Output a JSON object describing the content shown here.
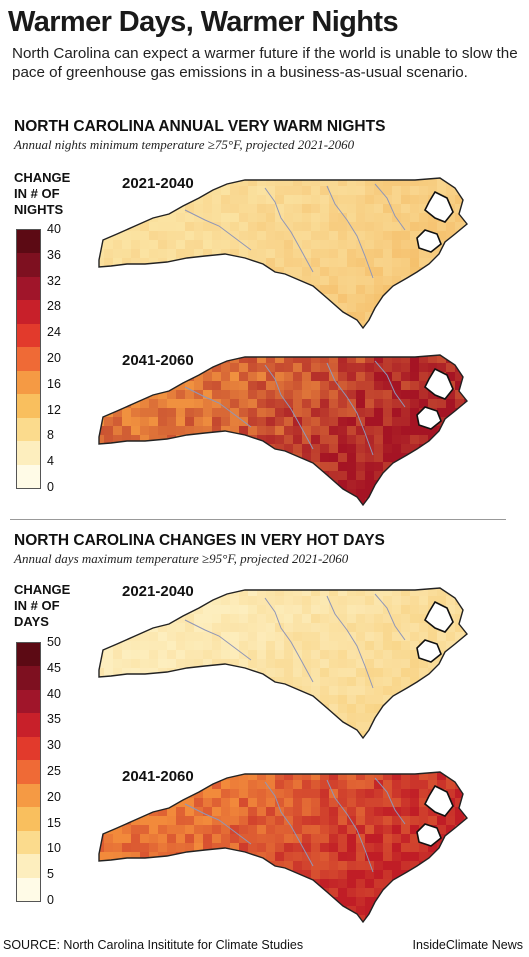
{
  "header": {
    "title": "Warmer Days, Warmer Nights",
    "subtitle": "North Carolina can expect a warmer future if the world is unable to slow the pace of greenhouse gas emissions in a business-as-usual scenario."
  },
  "sections": [
    {
      "title": "NORTH CAROLINA ANNUAL VERY WARM NIGHTS",
      "subtitle": "Annual nights minimum temperature ≥75°F, projected 2021-2060",
      "legend": {
        "title": "CHANGE IN # OF NIGHTS",
        "ticks": [
          "40",
          "36",
          "32",
          "28",
          "24",
          "20",
          "16",
          "12",
          "8",
          "4",
          "0"
        ],
        "colors": [
          "#5c0a14",
          "#7e1020",
          "#a0152a",
          "#c8202a",
          "#e23a2c",
          "#ef6a36",
          "#f59a44",
          "#f9bf5e",
          "#fbdb8d",
          "#fdeebe",
          "#fffbe7"
        ]
      },
      "maps": [
        {
          "label": "2021-2040",
          "low_color": "#fbe3a2",
          "high_color": "#f3b45a",
          "intensity": 0.25
        },
        {
          "label": "2041-2060",
          "low_color": "#f0913f",
          "high_color": "#a51424",
          "intensity": 0.85
        }
      ]
    },
    {
      "title": "NORTH CAROLINA CHANGES IN VERY HOT DAYS",
      "subtitle": "Annual days maximum temperature ≥95°F, projected 2021-2060",
      "legend": {
        "title": "CHANGE IN # OF DAYS",
        "ticks": [
          "50",
          "45",
          "40",
          "35",
          "30",
          "25",
          "20",
          "15",
          "10",
          "5",
          "0"
        ],
        "colors": [
          "#5c0a14",
          "#7e1020",
          "#a0152a",
          "#c8202a",
          "#e23a2c",
          "#ef6a36",
          "#f59a44",
          "#f9bf5e",
          "#fbdb8d",
          "#fdeebe",
          "#fffbe7"
        ]
      },
      "maps": [
        {
          "label": "2021-2040",
          "low_color": "#fdeebe",
          "high_color": "#f6c76b",
          "intensity": 0.2
        },
        {
          "label": "2041-2060",
          "low_color": "#f28a3b",
          "high_color": "#c01d26",
          "intensity": 0.8
        }
      ]
    }
  ],
  "footer": {
    "source": "SOURCE: North Carolina Insititute for Climate Studies",
    "credit": "InsideClimate News"
  }
}
